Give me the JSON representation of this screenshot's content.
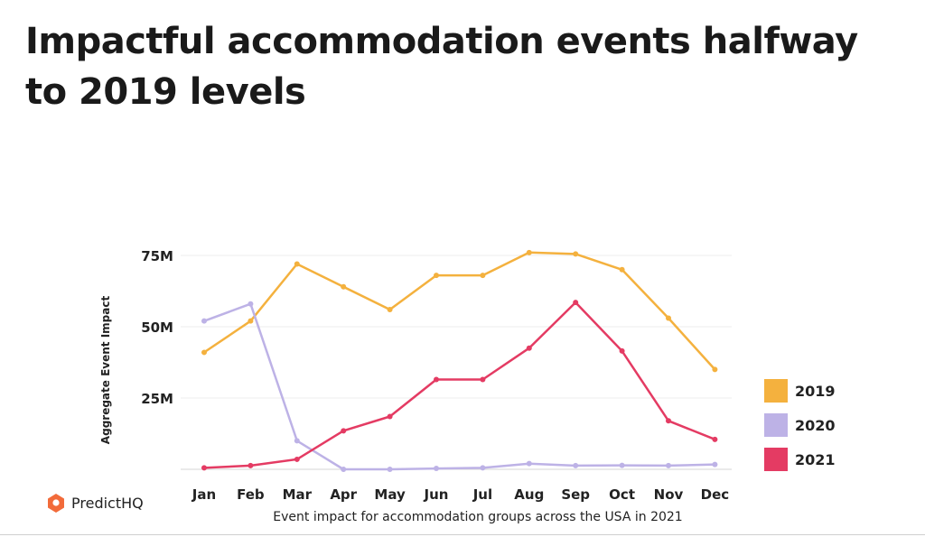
{
  "headline": "Impactful accommodation events halfway to 2019 levels",
  "brand": {
    "name": "PredictHQ",
    "color": "#f26b3a",
    "icon": "predicthq-logo-icon"
  },
  "chart_data": {
    "type": "line",
    "title": "Impactful accommodation events halfway to 2019 levels",
    "xlabel": "Event impact for accommodation groups across the USA in 2021",
    "ylabel": "Aggregate Event Impact",
    "categories": [
      "Jan",
      "Feb",
      "Mar",
      "Apr",
      "May",
      "Jun",
      "Jul",
      "Aug",
      "Sep",
      "Oct",
      "Nov",
      "Dec"
    ],
    "ylim": [
      0,
      75
    ],
    "yticks": [
      {
        "value": 25,
        "label": "25M"
      },
      {
        "value": 50,
        "label": "50M"
      },
      {
        "value": 75,
        "label": "75M"
      }
    ],
    "grid": true,
    "legend": "right",
    "series": [
      {
        "name": "2019",
        "color": "#f4b13e",
        "values": [
          41,
          52,
          72,
          64,
          56,
          68,
          68,
          76,
          75.5,
          70,
          53,
          35
        ]
      },
      {
        "name": "2020",
        "color": "#bdb2e6",
        "values": [
          52,
          58,
          10,
          0,
          0,
          0.3,
          0.5,
          2,
          1.3,
          1.4,
          1.3,
          1.7
        ]
      },
      {
        "name": "2021",
        "color": "#e43b63",
        "values": [
          0.5,
          1.3,
          3.5,
          13.5,
          18.5,
          31.5,
          31.5,
          42.5,
          58.5,
          41.5,
          17,
          10.5
        ]
      }
    ]
  }
}
